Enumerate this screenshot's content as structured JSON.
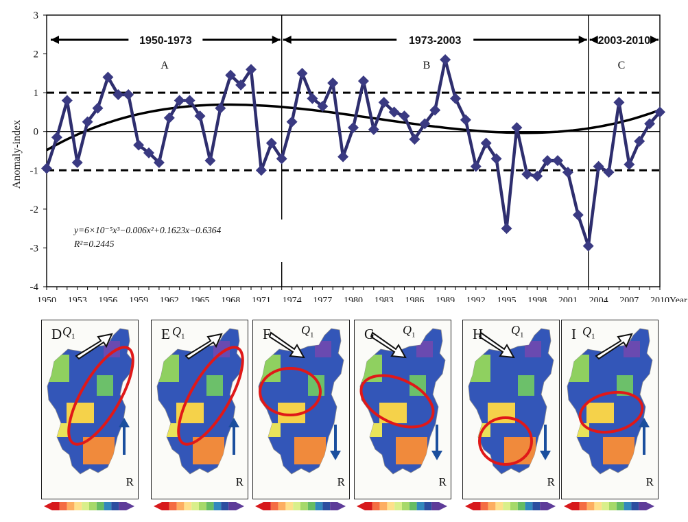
{
  "chart_data": {
    "type": "line",
    "xlabel": "Year",
    "ylabel": "Anomaly-index",
    "ylim": [
      -4,
      3
    ],
    "xlim": [
      1950,
      2010
    ],
    "yticks": [
      "-4",
      "-3",
      "-2",
      "-1",
      "0",
      "1",
      "2",
      "3"
    ],
    "xtick_labels": [
      "1950",
      "1953",
      "1956",
      "1959",
      "1962",
      "1965",
      "1968",
      "1971",
      "1974",
      "1977",
      "1980",
      "1983",
      "1986",
      "1989",
      "1992",
      "1995",
      "1998",
      "2001",
      "2004",
      "2007",
      "2010"
    ],
    "series": [
      {
        "x": [
          1950,
          1951,
          1952,
          1953,
          1954,
          1955,
          1956,
          1957,
          1958,
          1959,
          1960,
          1961,
          1962,
          1963,
          1964,
          1965,
          1966,
          1967,
          1968,
          1969,
          1970,
          1971,
          1972,
          1973,
          1974,
          1975,
          1976,
          1977,
          1978,
          1979,
          1980,
          1981,
          1982,
          1983,
          1984,
          1985,
          1986,
          1987,
          1988,
          1989,
          1990,
          1991,
          1992,
          1993,
          1994,
          1995,
          1996,
          1997,
          1998,
          1999,
          2000,
          2001,
          2002,
          2003,
          2004,
          2005,
          2006,
          2007,
          2008,
          2009,
          2010
        ],
        "values": [
          -0.95,
          -0.15,
          0.8,
          -0.8,
          0.25,
          0.6,
          1.4,
          0.95,
          0.95,
          -0.35,
          -0.55,
          -0.8,
          0.35,
          0.8,
          0.8,
          0.4,
          -0.75,
          0.6,
          1.45,
          1.2,
          1.6,
          -1.0,
          -0.3,
          -0.7,
          0.25,
          1.5,
          0.85,
          0.65,
          1.25,
          -0.65,
          0.1,
          1.3,
          0.05,
          0.75,
          0.5,
          0.4,
          -0.2,
          0.2,
          0.55,
          1.85,
          0.85,
          0.3,
          -0.9,
          -0.3,
          -0.7,
          -2.5,
          0.1,
          -1.1,
          -1.15,
          -0.75,
          -0.75,
          -1.05,
          -2.15,
          -2.95,
          -0.9,
          -1.05,
          0.75,
          -0.85,
          -0.25,
          0.2,
          0.5
        ]
      }
    ],
    "reference_lines": [
      1,
      -1
    ],
    "trendline": {
      "equation": "y=6×10⁻⁵x³−0.006x²+0.1623x−0.6364",
      "r2": "R²=0.2445",
      "coefficients": [
        6e-05,
        -0.006,
        0.1623,
        -0.6364
      ]
    },
    "periods": [
      {
        "label": "1950-1973",
        "region": "A",
        "start": 1950,
        "end": 1973
      },
      {
        "label": "1973-2003",
        "region": "B",
        "start": 1973,
        "end": 2003
      },
      {
        "label": "2003-2010",
        "region": "C",
        "start": 2003,
        "end": 2010
      }
    ],
    "dividers": [
      1973,
      2003
    ]
  },
  "maps": [
    {
      "letter": "D",
      "q": "Q",
      "q_sub": "1",
      "r": "R",
      "arrow": "up",
      "ellipse": "diagonal-ne",
      "wind": "ne"
    },
    {
      "letter": "E",
      "q": "Q",
      "q_sub": "1",
      "r": "R",
      "arrow": "up",
      "ellipse": "diagonal-ne",
      "wind": "ne"
    },
    {
      "letter": "F",
      "q": "Q",
      "q_sub": "1",
      "r": "R",
      "arrow": "down",
      "ellipse": "north-central",
      "wind": "se"
    },
    {
      "letter": "G",
      "q": "Q",
      "q_sub": "1",
      "r": "R",
      "arrow": "down",
      "ellipse": "central-tilt",
      "wind": "se"
    },
    {
      "letter": "H",
      "q": "Q",
      "q_sub": "1",
      "r": "R",
      "arrow": "down",
      "ellipse": "south",
      "wind": "se"
    },
    {
      "letter": "I",
      "q": "Q",
      "q_sub": "1",
      "r": "R",
      "arrow": "up",
      "ellipse": "yangtze",
      "wind": "ne"
    }
  ],
  "colors": {
    "series": "#2e2e6e",
    "marker": "#3a3a82",
    "ellipse": "#e01818",
    "r_arrow": "#1b4f9e"
  }
}
